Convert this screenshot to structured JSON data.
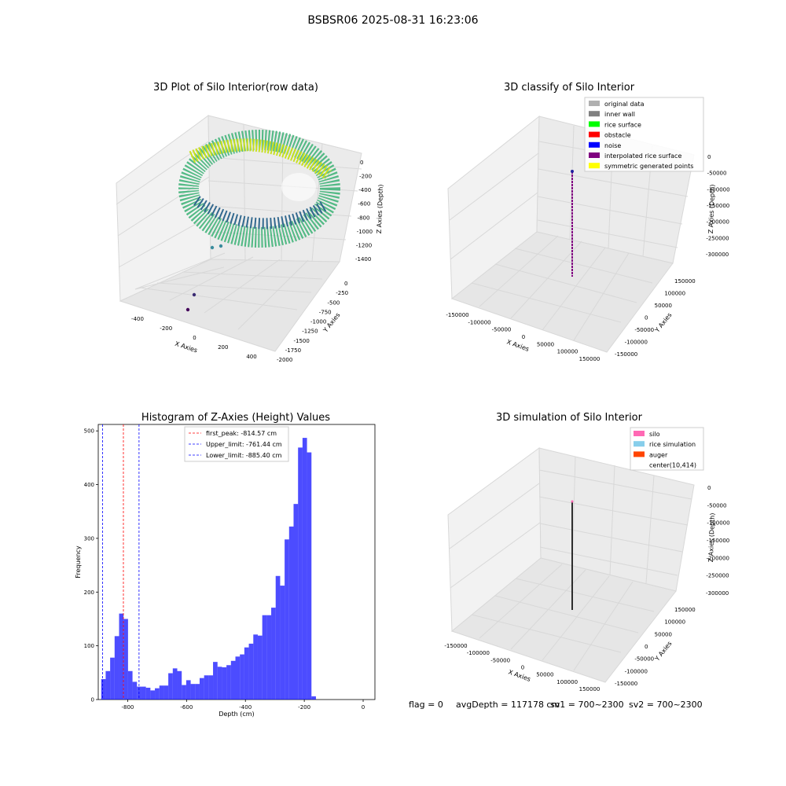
{
  "suptitle": "BSBSR06 2025-08-31 16:23:06",
  "panels": {
    "raw": {
      "title": "3D Plot of Silo Interior(row data)",
      "xlabel": "X Axies",
      "ylabel": "Y Axies",
      "zlabel": "Z Axies (Depth)",
      "xticks": [
        "-400",
        "-200",
        "0",
        "200",
        "400"
      ],
      "yticks": [
        "0",
        "-250",
        "-500",
        "-750",
        "-1000",
        "-1250",
        "-1500",
        "-1750",
        "-2000"
      ],
      "zticks": [
        "0",
        "-200",
        "-400",
        "-600",
        "-800",
        "-1000",
        "-1200",
        "-1400"
      ]
    },
    "classify": {
      "title": "3D classify of Silo Interior",
      "xlabel": "X Axies",
      "ylabel": "Y Axies",
      "zlabel": "Z Axies (Depth)",
      "xticks": [
        "-150000",
        "-100000",
        "-50000",
        "0",
        "50000",
        "100000",
        "150000"
      ],
      "yticks": [
        "150000",
        "100000",
        "50000",
        "0",
        "-50000",
        "-100000",
        "-150000"
      ],
      "zticks": [
        "0",
        "-50000",
        "-100000",
        "-150000",
        "-200000",
        "-250000",
        "-300000"
      ],
      "legend": [
        {
          "label": "original data",
          "color": "#b0b0b0"
        },
        {
          "label": "inner wall",
          "color": "#808080"
        },
        {
          "label": "rice surface",
          "color": "#00ff00"
        },
        {
          "label": "obstacle",
          "color": "#ff0000"
        },
        {
          "label": "noise",
          "color": "#0000ff"
        },
        {
          "label": "interpolated rice surface",
          "color": "#800080"
        },
        {
          "label": "symmetric generated points",
          "color": "#ffff00"
        }
      ]
    },
    "simulation": {
      "title": "3D simulation of Silo Interior",
      "xlabel": "X Axies",
      "ylabel": "Y Axies",
      "zlabel": "Z Axies (Depth)",
      "xticks": [
        "-150000",
        "-100000",
        "-50000",
        "0",
        "50000",
        "100000",
        "150000"
      ],
      "yticks": [
        "150000",
        "100000",
        "50000",
        "0",
        "-50000",
        "-100000",
        "-150000"
      ],
      "zticks": [
        "0",
        "-50000",
        "-100000",
        "-150000",
        "-200000",
        "-250000",
        "-300000"
      ],
      "legend": [
        {
          "label": "silo",
          "color": "#ff69b4"
        },
        {
          "label": "rice simulation",
          "color": "#87ceeb"
        },
        {
          "label": "auger",
          "color": "#ff4500"
        },
        {
          "label": "center(10,414)",
          "color": "#ffffff"
        }
      ]
    }
  },
  "chart_data": {
    "type": "bar",
    "title": "Histogram of Z-Axies (Height) Values",
    "xlabel": "Depth (cm)",
    "ylabel": "Frequency",
    "xlim": [
      -900,
      40
    ],
    "ylim": [
      0,
      512
    ],
    "xticks": [
      -800,
      -600,
      -400,
      -200,
      0
    ],
    "yticks": [
      0,
      100,
      200,
      300,
      400,
      500
    ],
    "bar_color": "#0000ff",
    "bin_start": -890,
    "bin_width": 15.2,
    "values": [
      38,
      53,
      78,
      118,
      160,
      150,
      53,
      33,
      24,
      24,
      22,
      17,
      21,
      26,
      26,
      49,
      58,
      53,
      27,
      36,
      29,
      29,
      40,
      45,
      45,
      70,
      61,
      60,
      64,
      72,
      80,
      84,
      97,
      104,
      121,
      119,
      157,
      157,
      171,
      230,
      212,
      298,
      322,
      364,
      469,
      487,
      460,
      6
    ],
    "vlines": [
      {
        "x": -814.57,
        "color": "#ff0000",
        "label": "first_peak: -814.57 cm"
      },
      {
        "x": -761.44,
        "color": "#0000ff",
        "label": "Upper_limit: -761.44 cm"
      },
      {
        "x": -885.4,
        "color": "#0000ff",
        "label": "Lower_limit: -885.40 cm"
      }
    ],
    "legend_position": "top-center"
  },
  "status": {
    "flag": "flag = 0",
    "avg": "avgDepth = 117178 cm",
    "sv1": "sv1 = 700~2300",
    "sv2": "sv2 = 700~2300"
  }
}
